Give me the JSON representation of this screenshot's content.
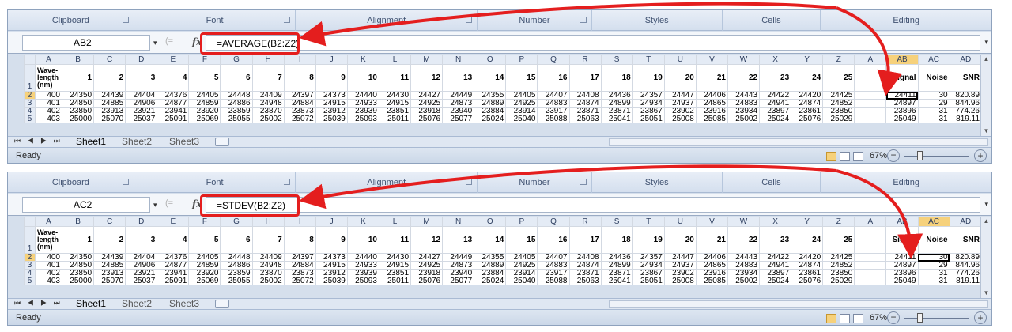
{
  "ribbon_groups": [
    "Clipboard",
    "Font",
    "Alignment",
    "Number",
    "Styles",
    "Cells",
    "Editing"
  ],
  "columns": [
    "A",
    "B",
    "C",
    "D",
    "E",
    "F",
    "G",
    "H",
    "I",
    "J",
    "K",
    "L",
    "M",
    "N",
    "O",
    "P",
    "Q",
    "R",
    "S",
    "T",
    "U",
    "V",
    "W",
    "X",
    "Y",
    "Z",
    "A",
    "AB",
    "AC",
    "AD"
  ],
  "header_row": {
    "row_number": "1",
    "wavelength_lines": [
      "Wave-",
      "length",
      "(nm)"
    ],
    "values": [
      "1",
      "2",
      "3",
      "4",
      "5",
      "6",
      "7",
      "8",
      "9",
      "10",
      "11",
      "12",
      "13",
      "14",
      "15",
      "16",
      "17",
      "18",
      "19",
      "20",
      "21",
      "22",
      "23",
      "24",
      "25"
    ],
    "signal": "Signal",
    "noise": "Noise",
    "snr": "SNR"
  },
  "rows": [
    {
      "num": "2",
      "cells": [
        "400",
        "24350",
        "24439",
        "24404",
        "24376",
        "24405",
        "24448",
        "24409",
        "24397",
        "24373",
        "24440",
        "24430",
        "24427",
        "24449",
        "24355",
        "24405",
        "24407",
        "24408",
        "24436",
        "24357",
        "24447",
        "24406",
        "24443",
        "24422",
        "24420",
        "24425",
        "",
        "24411",
        "30",
        "820.89"
      ]
    },
    {
      "num": "3",
      "cells": [
        "401",
        "24850",
        "24885",
        "24906",
        "24877",
        "24859",
        "24886",
        "24948",
        "24884",
        "24915",
        "24933",
        "24915",
        "24925",
        "24873",
        "24889",
        "24925",
        "24883",
        "24874",
        "24899",
        "24934",
        "24937",
        "24865",
        "24883",
        "24941",
        "24874",
        "24852",
        "",
        "24897",
        "29",
        "844.96"
      ]
    },
    {
      "num": "4",
      "cells": [
        "402",
        "23850",
        "23913",
        "23921",
        "23941",
        "23920",
        "23859",
        "23870",
        "23873",
        "23912",
        "23939",
        "23851",
        "23918",
        "23940",
        "23884",
        "23914",
        "23917",
        "23871",
        "23871",
        "23867",
        "23902",
        "23916",
        "23934",
        "23897",
        "23861",
        "23850",
        "",
        "23896",
        "31",
        "774.26"
      ]
    },
    {
      "num": "5",
      "cells": [
        "403",
        "25000",
        "25070",
        "25037",
        "25091",
        "25069",
        "25055",
        "25002",
        "25072",
        "25039",
        "25093",
        "25011",
        "25076",
        "25077",
        "25024",
        "25040",
        "25088",
        "25063",
        "25041",
        "25051",
        "25008",
        "25085",
        "25002",
        "25024",
        "25076",
        "25029",
        "",
        "25049",
        "31",
        "819.11"
      ]
    }
  ],
  "windows": [
    {
      "name_box": "AB2",
      "formula": "=AVERAGE(B2:Z2)",
      "active_column": "AB"
    },
    {
      "name_box": "AC2",
      "formula": "=STDEV(B2:Z2)",
      "active_column": "AC"
    }
  ],
  "name_dropdown": "▾",
  "cancel_glyph": "(=",
  "fx_label": "fx",
  "sheet_tabs": [
    "Sheet1",
    "Sheet2",
    "Sheet3"
  ],
  "nav_buttons": "⏮ ◀ ▶ ⏭",
  "status_text": "Ready",
  "zoom_level": "67%",
  "zoom_minus": "−",
  "zoom_plus": "+",
  "colors": {
    "annotation_red": "#e41e1e",
    "selected_header": "#f6d17b"
  },
  "icons": [
    "chevron-down-icon",
    "fx-icon",
    "new-sheet-icon",
    "normal-view-icon",
    "page-layout-icon",
    "page-break-icon",
    "zoom-out-icon",
    "zoom-in-icon"
  ]
}
